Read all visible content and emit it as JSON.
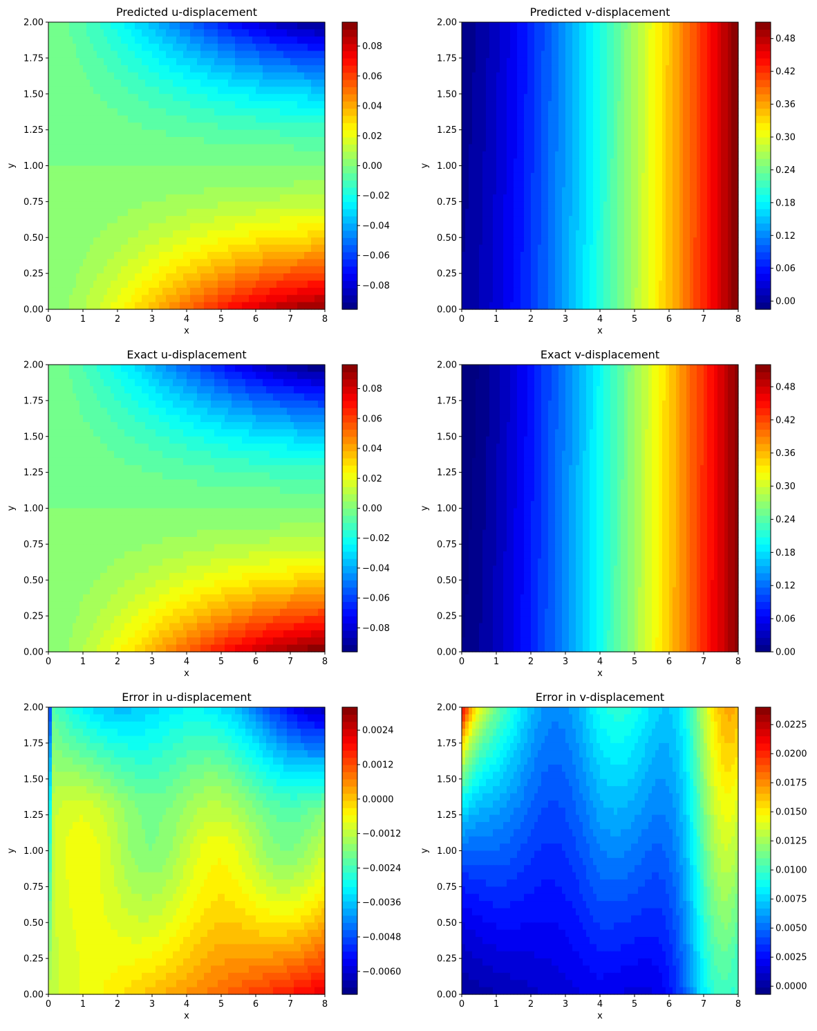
{
  "chart_data": [
    {
      "type": "heatmap",
      "title": "Predicted u-displacement",
      "xlabel": "x",
      "ylabel": "y",
      "xlim": [
        0,
        8
      ],
      "ylim": [
        0,
        2
      ],
      "xticks": [
        "0",
        "1",
        "2",
        "3",
        "4",
        "5",
        "6",
        "7",
        "8"
      ],
      "yticks": [
        "0.00",
        "0.25",
        "0.50",
        "0.75",
        "1.00",
        "1.25",
        "1.50",
        "1.75",
        "2.00"
      ],
      "colormap": "jet",
      "colorbar": {
        "range": [
          -0.096,
          0.096
        ],
        "ticks": [
          -0.08,
          -0.06,
          -0.04,
          -0.02,
          0.0,
          0.02,
          0.04,
          0.06,
          0.08
        ],
        "labels": [
          "−0.08",
          "−0.06",
          "−0.04",
          "−0.02",
          "0.00",
          "0.02",
          "0.04",
          "0.06",
          "0.08"
        ]
      },
      "field": "u",
      "corners": {
        "top_left": 0.0,
        "top_right": -0.093,
        "bottom_left": 0.0,
        "bottom_right": 0.093
      }
    },
    {
      "type": "heatmap",
      "title": "Predicted v-displacement",
      "xlabel": "x",
      "ylabel": "y",
      "xlim": [
        0,
        8
      ],
      "ylim": [
        0,
        2
      ],
      "xticks": [
        "0",
        "1",
        "2",
        "3",
        "4",
        "5",
        "6",
        "7",
        "8"
      ],
      "yticks": [
        "0.00",
        "0.25",
        "0.50",
        "0.75",
        "1.00",
        "1.25",
        "1.50",
        "1.75",
        "2.00"
      ],
      "colormap": "jet",
      "colorbar": {
        "range": [
          -0.015,
          0.51
        ],
        "ticks": [
          0.0,
          0.06,
          0.12,
          0.18,
          0.24,
          0.3,
          0.36,
          0.42,
          0.48
        ],
        "labels": [
          "0.00",
          "0.06",
          "0.12",
          "0.18",
          "0.24",
          "0.30",
          "0.36",
          "0.42",
          "0.48"
        ]
      },
      "field": "v",
      "corners": {
        "left": 0.0,
        "right": 0.51
      }
    },
    {
      "type": "heatmap",
      "title": "Exact u-displacement",
      "xlabel": "x",
      "ylabel": "y",
      "xlim": [
        0,
        8
      ],
      "ylim": [
        0,
        2
      ],
      "xticks": [
        "0",
        "1",
        "2",
        "3",
        "4",
        "5",
        "6",
        "7",
        "8"
      ],
      "yticks": [
        "0.00",
        "0.25",
        "0.50",
        "0.75",
        "1.00",
        "1.25",
        "1.50",
        "1.75",
        "2.00"
      ],
      "colormap": "jet",
      "colorbar": {
        "range": [
          -0.096,
          0.096
        ],
        "ticks": [
          -0.08,
          -0.06,
          -0.04,
          -0.02,
          0.0,
          0.02,
          0.04,
          0.06,
          0.08
        ],
        "labels": [
          "−0.08",
          "−0.06",
          "−0.04",
          "−0.02",
          "0.00",
          "0.02",
          "0.04",
          "0.06",
          "0.08"
        ]
      },
      "field": "u",
      "corners": {
        "top_left": 0.0,
        "top_right": -0.096,
        "bottom_left": 0.0,
        "bottom_right": 0.096
      }
    },
    {
      "type": "heatmap",
      "title": "Exact v-displacement",
      "xlabel": "x",
      "ylabel": "y",
      "xlim": [
        0,
        8
      ],
      "ylim": [
        0,
        2
      ],
      "xticks": [
        "0",
        "1",
        "2",
        "3",
        "4",
        "5",
        "6",
        "7",
        "8"
      ],
      "yticks": [
        "0.00",
        "0.25",
        "0.50",
        "0.75",
        "1.00",
        "1.25",
        "1.50",
        "1.75",
        "2.00"
      ],
      "colormap": "jet",
      "colorbar": {
        "range": [
          0.0,
          0.52
        ],
        "ticks": [
          0.0,
          0.06,
          0.12,
          0.18,
          0.24,
          0.3,
          0.36,
          0.42,
          0.48
        ],
        "labels": [
          "0.00",
          "0.06",
          "0.12",
          "0.18",
          "0.24",
          "0.30",
          "0.36",
          "0.42",
          "0.48"
        ]
      },
      "field": "v",
      "corners": {
        "left": 0.0,
        "right": 0.52
      }
    },
    {
      "type": "heatmap",
      "title": "Error in u-displacement",
      "xlabel": "x",
      "ylabel": "y",
      "xlim": [
        0,
        8
      ],
      "ylim": [
        0,
        2
      ],
      "xticks": [
        "0",
        "1",
        "2",
        "3",
        "4",
        "5",
        "6",
        "7",
        "8"
      ],
      "yticks": [
        "0.00",
        "0.25",
        "0.50",
        "0.75",
        "1.00",
        "1.25",
        "1.50",
        "1.75",
        "2.00"
      ],
      "colormap": "jet",
      "colorbar": {
        "range": [
          -0.0068,
          0.0032
        ],
        "ticks": [
          -0.006,
          -0.0048,
          -0.0036,
          -0.0024,
          -0.0012,
          0.0,
          0.0012,
          0.0024
        ],
        "labels": [
          "−0.0060",
          "−0.0048",
          "−0.0036",
          "−0.0024",
          "−0.0012",
          "0.0000",
          "0.0012",
          "0.0024"
        ]
      },
      "field": "eu",
      "corners": {
        "top_right": -0.0062,
        "bottom_right": 0.0028,
        "left_middle": -0.0012
      }
    },
    {
      "type": "heatmap",
      "title": "Error in v-displacement",
      "xlabel": "x",
      "ylabel": "y",
      "xlim": [
        0,
        8
      ],
      "ylim": [
        0,
        2
      ],
      "xticks": [
        "0",
        "1",
        "2",
        "3",
        "4",
        "5",
        "6",
        "7",
        "8"
      ],
      "yticks": [
        "0.00",
        "0.25",
        "0.50",
        "0.75",
        "1.00",
        "1.25",
        "1.50",
        "1.75",
        "2.00"
      ],
      "colormap": "jet",
      "colorbar": {
        "range": [
          -0.0007,
          0.024
        ],
        "ticks": [
          0.0,
          0.0025,
          0.005,
          0.0075,
          0.01,
          0.0125,
          0.015,
          0.0175,
          0.02,
          0.0225
        ],
        "labels": [
          "0.0000",
          "0.0025",
          "0.0050",
          "0.0075",
          "0.0100",
          "0.0125",
          "0.0150",
          "0.0175",
          "0.0200",
          "0.0225"
        ]
      },
      "field": "ev",
      "corners": {
        "top_left": 0.023,
        "bottom_middle": 0.0,
        "right": 0.01
      }
    }
  ]
}
